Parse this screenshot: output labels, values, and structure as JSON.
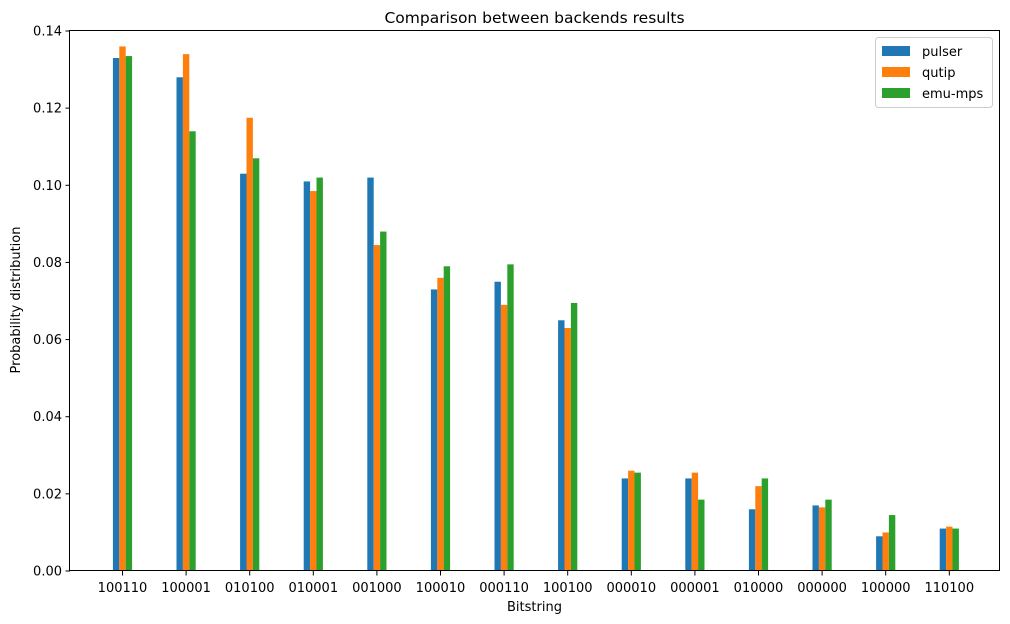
{
  "chart_data": {
    "type": "bar",
    "title": "Comparison between backends results",
    "xlabel": "Bitstring",
    "ylabel": "Probability distribution",
    "ylim": [
      0,
      0.14
    ],
    "yticks": [
      "0.00",
      "0.02",
      "0.04",
      "0.06",
      "0.08",
      "0.10",
      "0.12",
      "0.14"
    ],
    "categories": [
      "100110",
      "100001",
      "010100",
      "010001",
      "001000",
      "100010",
      "000110",
      "100100",
      "000010",
      "000001",
      "010000",
      "000000",
      "100000",
      "110100"
    ],
    "series": [
      {
        "name": "pulser",
        "color": "#1f77b4",
        "values": [
          0.133,
          0.128,
          0.103,
          0.101,
          0.102,
          0.073,
          0.075,
          0.065,
          0.024,
          0.024,
          0.016,
          0.017,
          0.009,
          0.011
        ]
      },
      {
        "name": "qutip",
        "color": "#ff7f0e",
        "values": [
          0.136,
          0.134,
          0.1175,
          0.0985,
          0.0845,
          0.076,
          0.069,
          0.063,
          0.026,
          0.0255,
          0.022,
          0.0165,
          0.01,
          0.0115
        ]
      },
      {
        "name": "emu-mps",
        "color": "#2ca02c",
        "values": [
          0.1335,
          0.114,
          0.107,
          0.102,
          0.088,
          0.079,
          0.0795,
          0.0695,
          0.0255,
          0.0185,
          0.024,
          0.0185,
          0.0145,
          0.011
        ]
      }
    ],
    "legend_position": "top-right",
    "grid": false
  }
}
